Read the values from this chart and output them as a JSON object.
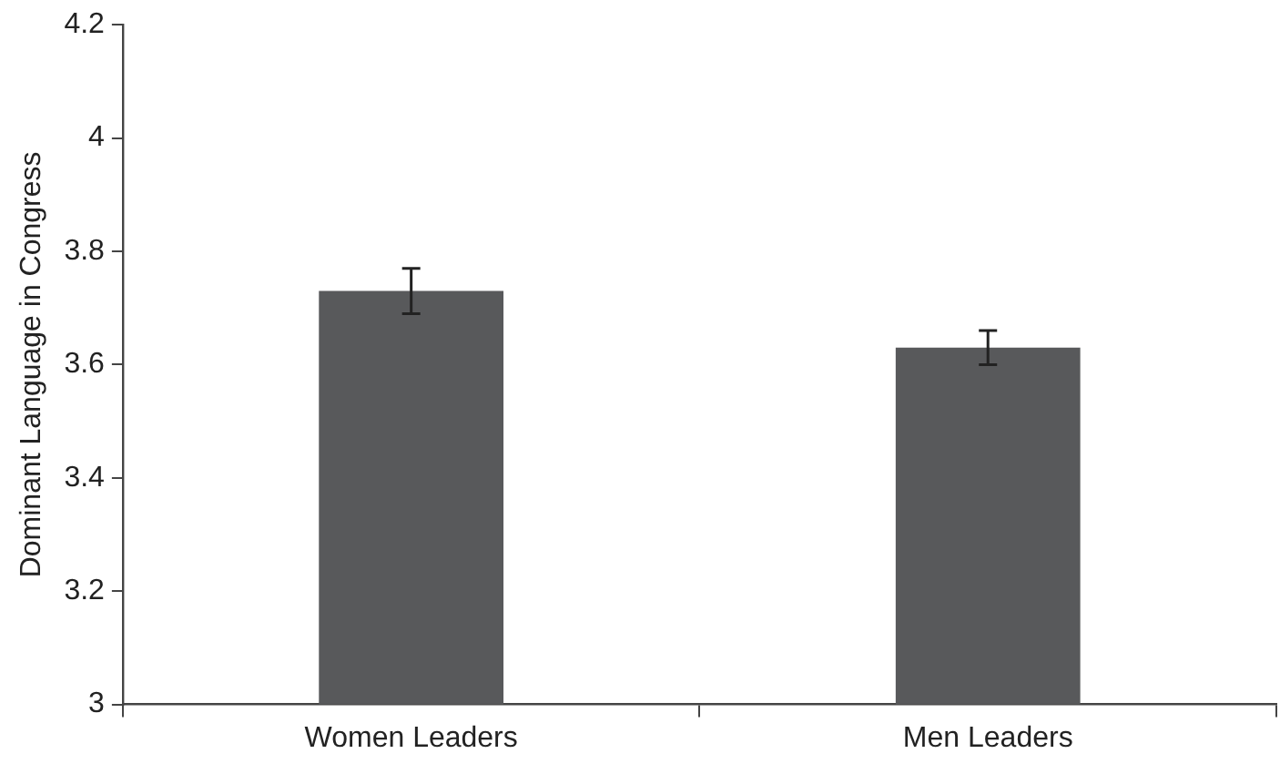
{
  "chart_data": {
    "type": "bar",
    "ylabel": "Dominant Language in Congress",
    "categories": [
      "Women Leaders",
      "Men Leaders"
    ],
    "values": [
      3.73,
      3.63
    ],
    "errors": [
      0.04,
      0.03
    ],
    "color": "#58595b",
    "ylim": [
      3,
      4.2
    ],
    "yticks": [
      3,
      3.2,
      3.4,
      3.6,
      3.8,
      4,
      4.2
    ],
    "grid": false,
    "legend": false
  }
}
